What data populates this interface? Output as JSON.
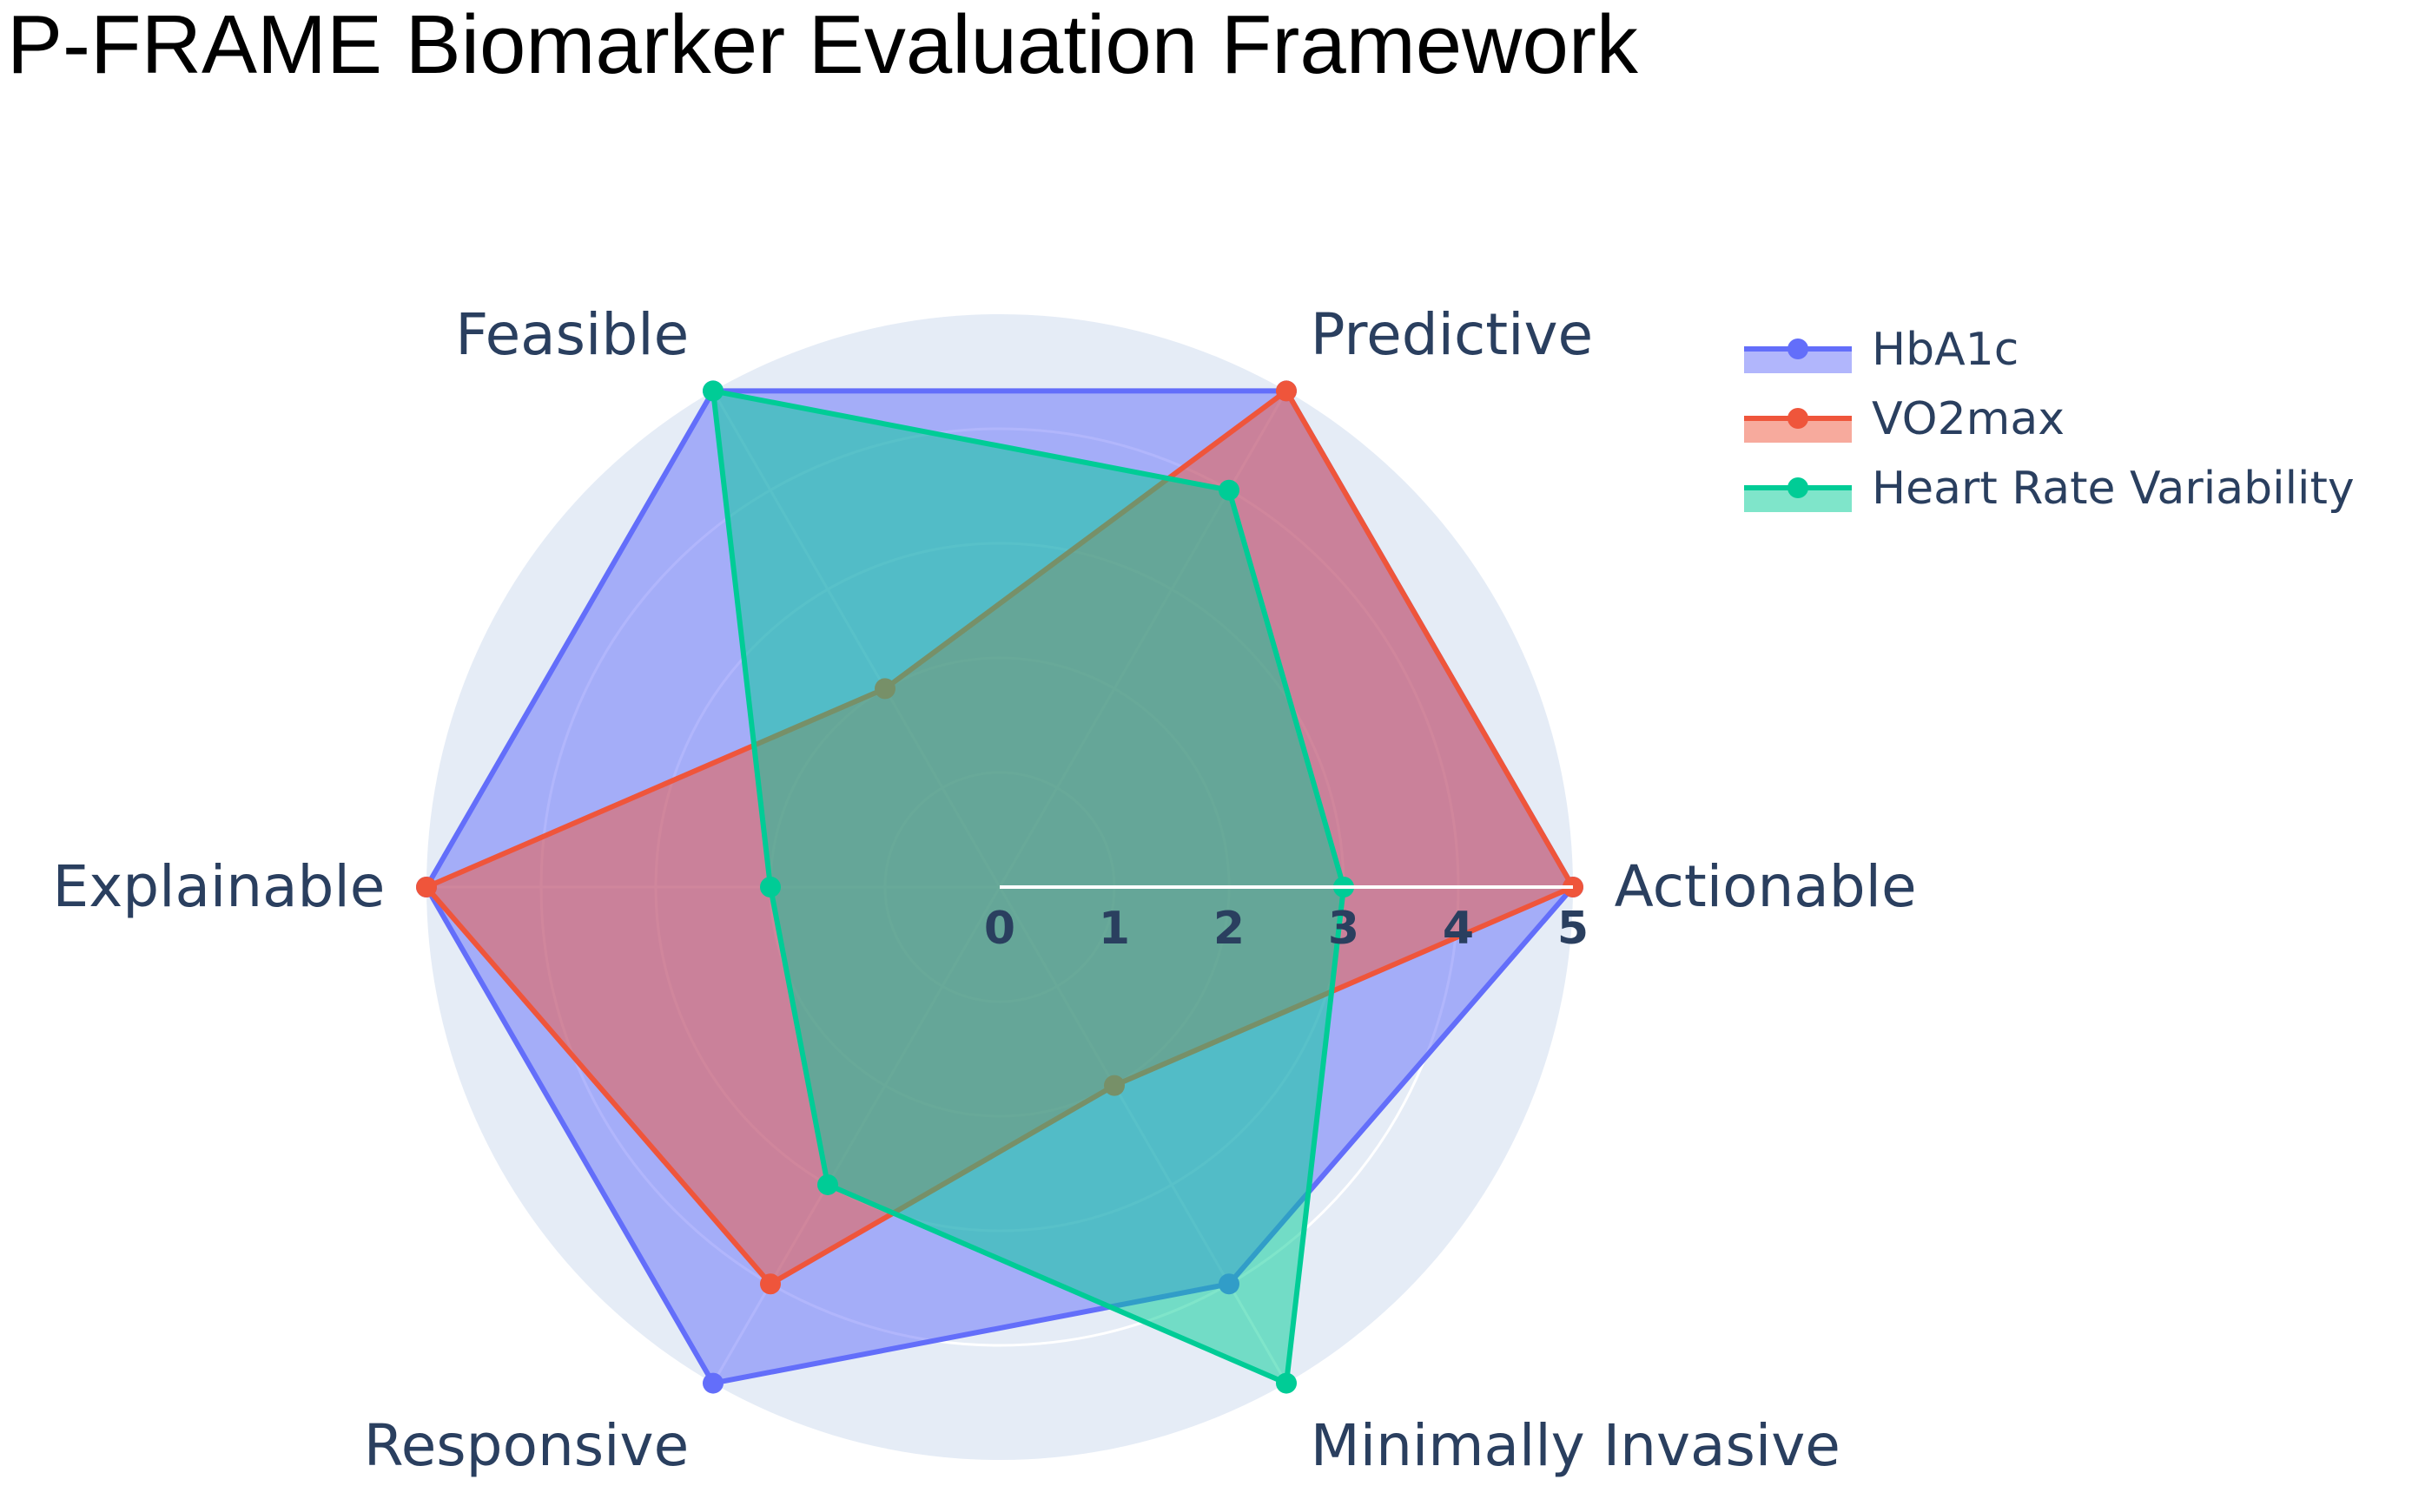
{
  "chart_data": {
    "type": "radar",
    "title": "P-FRAME Biomarker Evaluation Framework",
    "categories": [
      "Actionable",
      "Predictive",
      "Feasible",
      "Explainable",
      "Responsive",
      "Minimally Invasive"
    ],
    "radial_range": [
      0,
      5
    ],
    "radial_ticks": [
      "0",
      "1",
      "2",
      "3",
      "4",
      "5"
    ],
    "series": [
      {
        "name": "HbA1c",
        "values": [
          5,
          5,
          5,
          5,
          5,
          4
        ],
        "color": "#636efa"
      },
      {
        "name": "VO2max",
        "values": [
          5,
          5,
          2,
          5,
          4,
          2
        ],
        "color": "#ef553b"
      },
      {
        "name": "Heart Rate Variability",
        "values": [
          3,
          4,
          5,
          2,
          3,
          5
        ],
        "color": "#00cc96"
      }
    ],
    "legend_position": "top-right",
    "grid": true,
    "background_color": "#e5ecf6"
  }
}
